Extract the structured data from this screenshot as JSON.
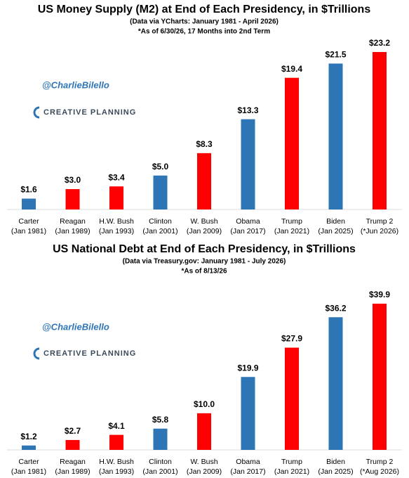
{
  "chart_data": [
    {
      "type": "bar",
      "title": "US Money Supply (M2) at End of Each Presidency, in $Trillions",
      "subtitle": "(Data via YCharts: January 1981 - April 2026)",
      "note": "*As of 6/30/26, 17 Months into 2nd Term",
      "watermark": "@CharlieBilello",
      "brand": "CREATIVE PLANNING",
      "categories": [
        [
          "Carter",
          "(Jan 1981)"
        ],
        [
          "Reagan",
          "(Jan 1989)"
        ],
        [
          "H.W. Bush",
          "(Jan 1993)"
        ],
        [
          "Clinton",
          "(Jan 2001)"
        ],
        [
          "W. Bush",
          "(Jan 2009)"
        ],
        [
          "Obama",
          "(Jan 2017)"
        ],
        [
          "Trump",
          "(Jan 2021)"
        ],
        [
          "Biden",
          "(Jan 2025)"
        ],
        [
          "Trump 2",
          "(*Jun 2026)"
        ]
      ],
      "values": [
        1.6,
        3.0,
        3.4,
        5.0,
        8.3,
        13.3,
        19.4,
        21.5,
        23.2
      ],
      "value_labels": [
        "$1.6",
        "$3.0",
        "$3.4",
        "$5.0",
        "$8.3",
        "$13.3",
        "$19.4",
        "$21.5",
        "$23.2"
      ],
      "colors": [
        "#2e75b6",
        "#ff0000",
        "#ff0000",
        "#2e75b6",
        "#ff0000",
        "#2e75b6",
        "#ff0000",
        "#2e75b6",
        "#ff0000"
      ]
    },
    {
      "type": "bar",
      "title": "US National Debt at End of Each Presidency, in $Trillions",
      "subtitle": "(Data via Treasury.gov: January 1981 - July 2026)",
      "note": "*As of 8/13/26",
      "watermark": "@CharlieBilello",
      "brand": "CREATIVE PLANNING",
      "categories": [
        [
          "Carter",
          "(Jan 1981)"
        ],
        [
          "Reagan",
          "(Jan 1989)"
        ],
        [
          "H.W. Bush",
          "(Jan 1993)"
        ],
        [
          "Clinton",
          "(Jan 2001)"
        ],
        [
          "W. Bush",
          "(Jan 2009)"
        ],
        [
          "Obama",
          "(Jan 2017)"
        ],
        [
          "Trump",
          "(Jan 2021)"
        ],
        [
          "Biden",
          "(Jan 2025)"
        ],
        [
          "Trump 2",
          "(*Aug 2026)"
        ]
      ],
      "values": [
        1.2,
        2.7,
        4.1,
        5.8,
        10.0,
        19.9,
        27.9,
        36.2,
        39.9
      ],
      "value_labels": [
        "$1.2",
        "$2.7",
        "$4.1",
        "$5.8",
        "$10.0",
        "$19.9",
        "$27.9",
        "$36.2",
        "$39.9"
      ],
      "colors": [
        "#2e75b6",
        "#ff0000",
        "#ff0000",
        "#2e75b6",
        "#ff0000",
        "#2e75b6",
        "#ff0000",
        "#2e75b6",
        "#ff0000"
      ]
    }
  ]
}
